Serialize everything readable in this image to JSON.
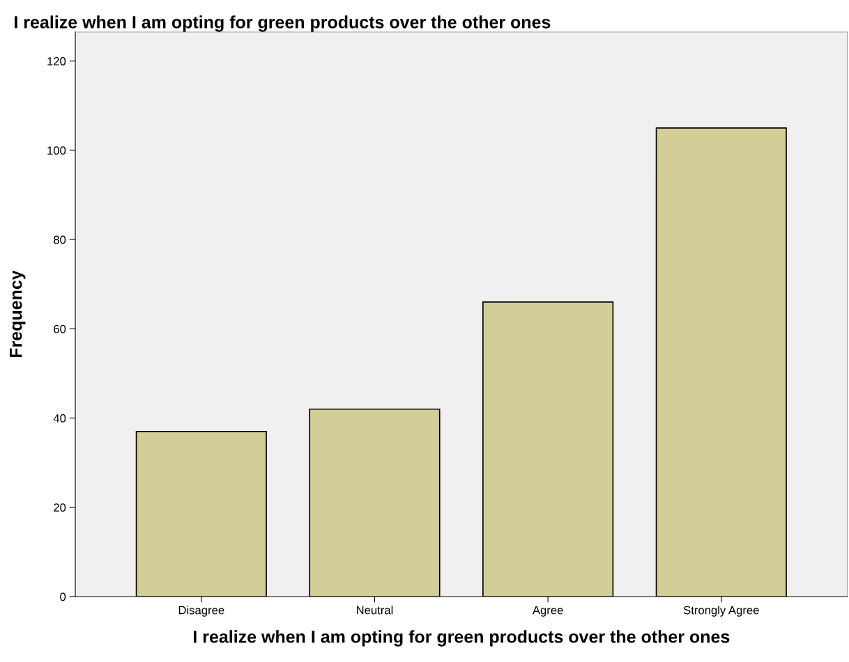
{
  "chart_data": {
    "type": "bar",
    "title": "I realize when I am opting for green products over the other ones",
    "xlabel": "I realize when I am opting for green products over the other ones",
    "ylabel": "Frequency",
    "categories": [
      "Disagree",
      "Neutral",
      "Agree",
      "Strongly Agree"
    ],
    "values": [
      37,
      42,
      66,
      105
    ],
    "color": "#d3ce97",
    "ylim": [
      0,
      126.5
    ],
    "yticks": [
      0,
      20,
      40,
      60,
      80,
      100,
      120
    ],
    "grid": false,
    "legend": false
  }
}
